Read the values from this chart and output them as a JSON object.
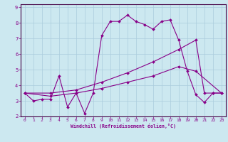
{
  "xlabel": "Windchill (Refroidissement éolien,°C)",
  "background_color": "#cce8f0",
  "line_color": "#880088",
  "grid_color": "#aaccdd",
  "spine_color": "#440044",
  "xlim": [
    -0.5,
    23.5
  ],
  "ylim": [
    2.0,
    9.2
  ],
  "xticks": [
    0,
    1,
    2,
    3,
    4,
    5,
    6,
    7,
    8,
    9,
    10,
    11,
    12,
    13,
    14,
    15,
    16,
    17,
    18,
    19,
    20,
    21,
    22,
    23
  ],
  "yticks": [
    2,
    3,
    4,
    5,
    6,
    7,
    8,
    9
  ],
  "line1_x": [
    0,
    1,
    2,
    3,
    4,
    5,
    6,
    7,
    8,
    9,
    10,
    11,
    12,
    13,
    14,
    15,
    16,
    17,
    18,
    19,
    20,
    21,
    22,
    23
  ],
  "line1_y": [
    3.5,
    3.0,
    3.1,
    3.1,
    4.6,
    2.6,
    3.5,
    2.2,
    3.5,
    7.2,
    8.1,
    8.1,
    8.5,
    8.1,
    7.9,
    7.6,
    8.1,
    8.2,
    6.9,
    4.9,
    3.4,
    2.9,
    3.5,
    3.5
  ],
  "line2_x": [
    0,
    3,
    6,
    9,
    12,
    15,
    18,
    20,
    21,
    22,
    23
  ],
  "line2_y": [
    3.5,
    3.5,
    3.7,
    4.2,
    4.8,
    5.5,
    6.3,
    6.9,
    3.5,
    3.5,
    3.5
  ],
  "line3_x": [
    0,
    3,
    6,
    9,
    12,
    15,
    18,
    20,
    23
  ],
  "line3_y": [
    3.5,
    3.3,
    3.5,
    3.8,
    4.2,
    4.6,
    5.2,
    4.9,
    3.5
  ]
}
